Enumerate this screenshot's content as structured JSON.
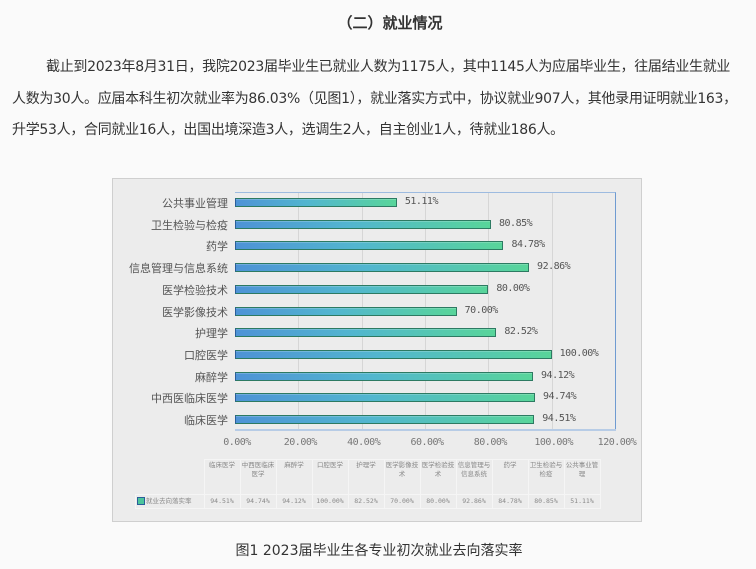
{
  "section_title": "（二）就业情况",
  "paragraph": "截止到2023年8月31日，我院2023届毕业生已就业人数为1175人，其中1145人为应届毕业生，往届结业生就业人数为30人。应届本科生初次就业率为86.03%（见图1），就业落实方式中，协议就业907人，其他录用证明就业163，升学53人，合同就业16人，出国出境深造3人，选调生2人，自主创业1人，待就业186人。",
  "caption": "图1 2023届毕业生各专业初次就业去向落实率",
  "chart_data": {
    "type": "bar",
    "orientation": "horizontal",
    "title": "",
    "xlabel": "",
    "ylabel": "",
    "xlim": [
      0,
      120
    ],
    "x_ticks": [
      "0.00%",
      "20.00%",
      "40.00%",
      "60.00%",
      "80.00%",
      "100.00%",
      "120.00%"
    ],
    "grid": true,
    "legend": [
      "就业去向落实率"
    ],
    "legend_position": "data-table",
    "categories": [
      "公共事业管理",
      "卫生检验与检疫",
      "药学",
      "信息管理与信息系统",
      "医学检验技术",
      "医学影像技术",
      "护理学",
      "口腔医学",
      "麻醉学",
      "中西医临床医学",
      "临床医学"
    ],
    "values": [
      51.11,
      80.85,
      84.78,
      92.86,
      80.0,
      70.0,
      82.52,
      100.0,
      94.12,
      94.74,
      94.51
    ],
    "value_labels": [
      "51.11%",
      "80.85%",
      "84.78%",
      "92.86%",
      "80.00%",
      "70.00%",
      "82.52%",
      "100.00%",
      "94.12%",
      "94.74%",
      "94.51%"
    ],
    "bar_gradient": [
      "#4e93d6",
      "#58d59a"
    ],
    "data_table": {
      "series_label": "就业去向落实率",
      "headers": [
        "临床医学",
        "中西医临床医学",
        "麻醉学",
        "口腔医学",
        "护理学",
        "医学影像技术",
        "医学检验技术",
        "信息管理与信息系统",
        "药学",
        "卫生检验与检疫",
        "公共事业管理"
      ],
      "values": [
        "94.51%",
        "94.74%",
        "94.12%",
        "100.00%",
        "82.52%",
        "70.00%",
        "80.00%",
        "92.86%",
        "84.78%",
        "80.85%",
        "51.11%"
      ]
    }
  }
}
